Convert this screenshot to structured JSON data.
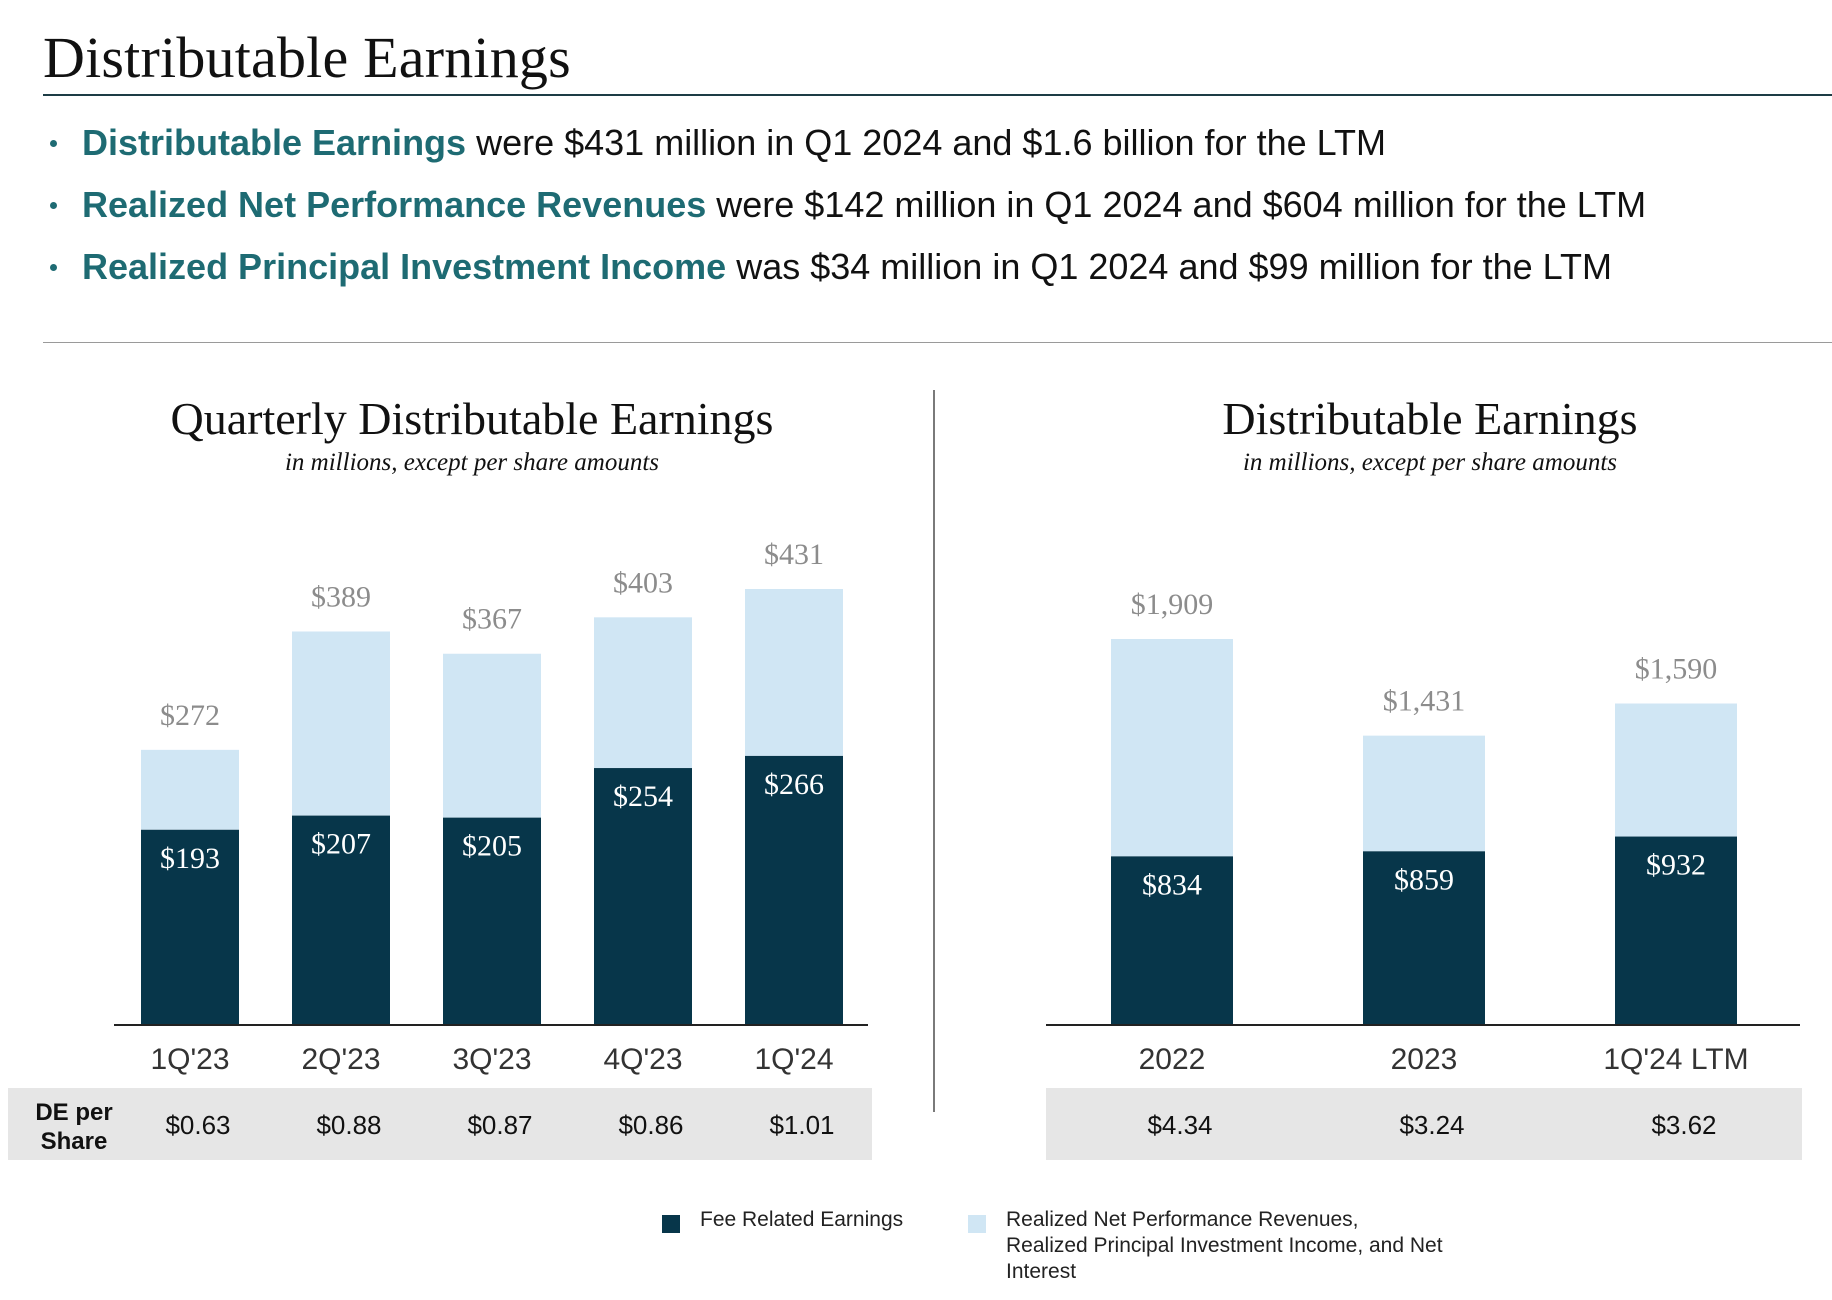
{
  "page": {
    "title": "Distributable Earnings",
    "bullets": [
      {
        "highlight": "Distributable Earnings",
        "text": " were $431 million in Q1 2024 and $1.6 billion for the LTM"
      },
      {
        "highlight": "Realized Net Performance Revenues",
        "text": " were $142 million in Q1 2024 and $604 million for the LTM"
      },
      {
        "highlight": "Realized Principal Investment Income",
        "text": " was $34 million in Q1 2024 and $99 million for the LTM"
      }
    ]
  },
  "colors": {
    "fre": "#07364a",
    "other": "#d0e6f4",
    "accent": "#1e6b73",
    "total_label": "#8c8c8c",
    "share_bg": "#e6e6e6"
  },
  "legend": [
    {
      "name": "Fee Related Earnings"
    },
    {
      "name": "Realized Net Performance Revenues, Realized Principal Investment Income, and Net Interest"
    }
  ],
  "chart_data": [
    {
      "type": "bar",
      "stacked": true,
      "title": "Quarterly Distributable Earnings",
      "subtitle": "in millions, except per share amounts",
      "categories": [
        "1Q'23",
        "2Q'23",
        "3Q'23",
        "4Q'23",
        "1Q'24"
      ],
      "series": [
        {
          "name": "Fee Related Earnings",
          "values": [
            193,
            207,
            205,
            254,
            266
          ],
          "labels": [
            "$193",
            "$207",
            "$205",
            "$254",
            "$266"
          ]
        },
        {
          "name": "Realized Net Performance Revenues, Realized Principal Investment Income, and Net Interest",
          "values": [
            79,
            182,
            162,
            149,
            165
          ]
        }
      ],
      "totals": [
        272,
        389,
        367,
        403,
        431
      ],
      "total_labels": [
        "$272",
        "$389",
        "$367",
        "$403",
        "$431"
      ],
      "per_share_label": "DE per Share",
      "per_share": [
        "$0.63",
        "$0.88",
        "$0.87",
        "$0.86",
        "$1.01"
      ],
      "ylim": [
        0,
        431
      ]
    },
    {
      "type": "bar",
      "stacked": true,
      "title": "Distributable Earnings",
      "subtitle": "in millions, except per share amounts",
      "categories": [
        "2022",
        "2023",
        "1Q'24 LTM"
      ],
      "series": [
        {
          "name": "Fee Related Earnings",
          "values": [
            834,
            859,
            932
          ],
          "labels": [
            "$834",
            "$859",
            "$932"
          ]
        },
        {
          "name": "Realized Net Performance Revenues, Realized Principal Investment Income, and Net Interest",
          "values": [
            1075,
            572,
            658
          ]
        }
      ],
      "totals": [
        1909,
        1431,
        1590
      ],
      "total_labels": [
        "$1,909",
        "$1,431",
        "$1,590"
      ],
      "per_share": [
        "$4.34",
        "$3.24",
        "$3.62"
      ],
      "ylim": [
        0,
        1909
      ]
    }
  ]
}
